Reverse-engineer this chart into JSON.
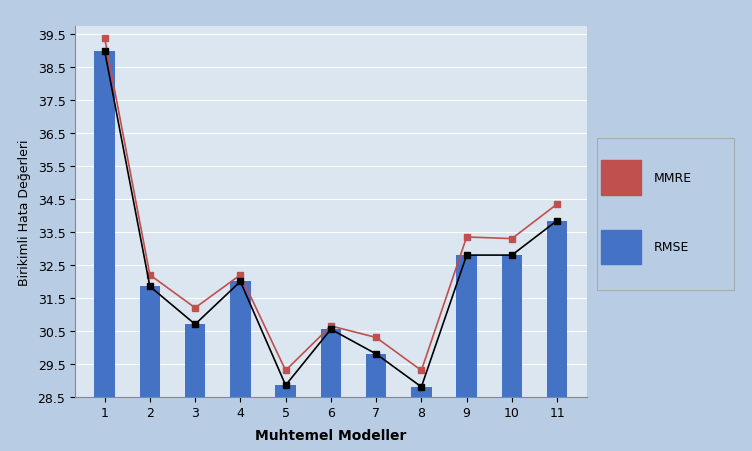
{
  "categories": [
    1,
    2,
    3,
    4,
    5,
    6,
    7,
    8,
    9,
    10,
    11
  ],
  "mmre": [
    39.4,
    32.2,
    31.2,
    32.2,
    29.3,
    30.65,
    30.3,
    29.3,
    33.35,
    33.3,
    34.35
  ],
  "rmse": [
    39.0,
    31.85,
    30.7,
    32.0,
    28.85,
    30.55,
    29.8,
    28.8,
    32.8,
    32.8,
    33.85
  ],
  "mmre_color": "#c0504d",
  "rmse_color": "#4472c4",
  "line_mmre_color": "#c0504d",
  "line_rmse_color": "#000000",
  "background_color": "#b8cce4",
  "plot_bg_color": "#dce6f1",
  "ylabel": "Birikimli Hata Değerleri",
  "xlabel": "Muhtemel Modeller",
  "ylim_min": 28.5,
  "ylim_max": 39.75,
  "yticks": [
    28.5,
    29.5,
    30.5,
    31.5,
    32.5,
    33.5,
    34.5,
    35.5,
    36.5,
    37.5,
    38.5,
    39.5
  ],
  "legend_mmre": "MMRE",
  "legend_rmse": "RMSE",
  "bar_width": 0.45
}
